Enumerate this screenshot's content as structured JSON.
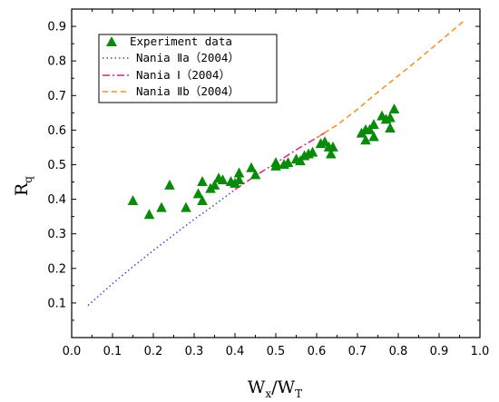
{
  "chart_data": {
    "type": "scatter",
    "xlabel_main": "W",
    "xlabel_sub1": "x",
    "xlabel_sep": "/W",
    "xlabel_sub2": "T",
    "ylabel_main": "R",
    "ylabel_sub": "q",
    "xlim": [
      0.0,
      1.0
    ],
    "ylim": [
      0.0,
      0.95
    ],
    "xticks": [
      "0.0",
      "0.1",
      "0.2",
      "0.3",
      "0.4",
      "0.5",
      "0.6",
      "0.7",
      "0.8",
      "0.9",
      "1.0"
    ],
    "yticks": [
      "0.1",
      "0.2",
      "0.3",
      "0.4",
      "0.5",
      "0.6",
      "0.7",
      "0.8",
      "0.9"
    ],
    "legend_position": "top-left",
    "series": [
      {
        "name": "Experiment data",
        "kind": "markers",
        "marker": "triangle",
        "color": "#0a8a0a",
        "points": [
          [
            0.15,
            0.395
          ],
          [
            0.19,
            0.355
          ],
          [
            0.22,
            0.375
          ],
          [
            0.24,
            0.44
          ],
          [
            0.28,
            0.375
          ],
          [
            0.31,
            0.415
          ],
          [
            0.32,
            0.45
          ],
          [
            0.32,
            0.395
          ],
          [
            0.34,
            0.43
          ],
          [
            0.35,
            0.44
          ],
          [
            0.36,
            0.46
          ],
          [
            0.37,
            0.455
          ],
          [
            0.39,
            0.45
          ],
          [
            0.4,
            0.445
          ],
          [
            0.41,
            0.455
          ],
          [
            0.41,
            0.475
          ],
          [
            0.44,
            0.49
          ],
          [
            0.45,
            0.47
          ],
          [
            0.5,
            0.505
          ],
          [
            0.5,
            0.495
          ],
          [
            0.52,
            0.5
          ],
          [
            0.53,
            0.505
          ],
          [
            0.55,
            0.515
          ],
          [
            0.56,
            0.51
          ],
          [
            0.57,
            0.525
          ],
          [
            0.58,
            0.53
          ],
          [
            0.59,
            0.535
          ],
          [
            0.61,
            0.56
          ],
          [
            0.62,
            0.565
          ],
          [
            0.63,
            0.55
          ],
          [
            0.635,
            0.53
          ],
          [
            0.64,
            0.55
          ],
          [
            0.71,
            0.59
          ],
          [
            0.72,
            0.6
          ],
          [
            0.72,
            0.57
          ],
          [
            0.73,
            0.6
          ],
          [
            0.74,
            0.615
          ],
          [
            0.74,
            0.58
          ],
          [
            0.76,
            0.64
          ],
          [
            0.77,
            0.63
          ],
          [
            0.78,
            0.605
          ],
          [
            0.78,
            0.635
          ],
          [
            0.79,
            0.66
          ]
        ]
      },
      {
        "name": "Nania Ⅱa（2004）",
        "kind": "line",
        "dash": "dotted",
        "color": "#2a4fd8",
        "points": [
          [
            0.04,
            0.093
          ],
          [
            0.1,
            0.156
          ],
          [
            0.15,
            0.205
          ],
          [
            0.2,
            0.252
          ],
          [
            0.25,
            0.297
          ],
          [
            0.3,
            0.342
          ],
          [
            0.35,
            0.384
          ],
          [
            0.4,
            0.428
          ]
        ]
      },
      {
        "name": "Nania Ⅰ（2004）",
        "kind": "line",
        "dash": "dashdot",
        "color": "#e0207a",
        "points": [
          [
            0.4,
            0.428
          ],
          [
            0.45,
            0.468
          ],
          [
            0.5,
            0.505
          ],
          [
            0.55,
            0.543
          ],
          [
            0.6,
            0.578
          ],
          [
            0.62,
            0.592
          ]
        ]
      },
      {
        "name": "Nania Ⅱb（2004）",
        "kind": "line",
        "dash": "dashed",
        "color": "#ff8a1e",
        "points": [
          [
            0.6,
            0.578
          ],
          [
            0.65,
            0.615
          ],
          [
            0.7,
            0.66
          ],
          [
            0.75,
            0.71
          ],
          [
            0.8,
            0.757
          ],
          [
            0.85,
            0.805
          ],
          [
            0.9,
            0.855
          ],
          [
            0.96,
            0.915
          ]
        ]
      }
    ]
  }
}
